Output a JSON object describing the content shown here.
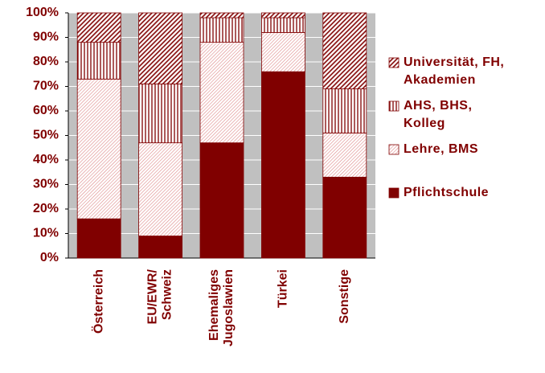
{
  "chart_data": {
    "type": "stacked-bar",
    "categories": [
      "Österreich",
      "EU/EWR/ Schweiz",
      "Ehemaliges Jugoslawien",
      "Türkei",
      "Sonstige"
    ],
    "series": [
      {
        "name": "Pflichtschule",
        "color": "#800000",
        "pattern": "solid",
        "values": [
          16,
          9,
          47,
          76,
          33
        ]
      },
      {
        "name": "Lehre, BMS",
        "color": "#800000",
        "pattern": "diagonal-fine",
        "values": [
          57,
          38,
          41,
          16,
          18
        ]
      },
      {
        "name": "AHS, BHS, Kolleg",
        "color": "#800000",
        "pattern": "vertical",
        "values": [
          15,
          24,
          10,
          6,
          18
        ]
      },
      {
        "name": "Universität, FH, Akademien",
        "color": "#800000",
        "pattern": "diagonal",
        "values": [
          12,
          29,
          2,
          2,
          31
        ]
      }
    ],
    "ylim": [
      0,
      100
    ],
    "yticks": [
      {
        "value": 0,
        "label": "0%"
      },
      {
        "value": 10,
        "label": "10%"
      },
      {
        "value": 20,
        "label": "20%"
      },
      {
        "value": 30,
        "label": "30%"
      },
      {
        "value": 40,
        "label": "40%"
      },
      {
        "value": 50,
        "label": "50%"
      },
      {
        "value": 60,
        "label": "60%"
      },
      {
        "value": 70,
        "label": "70%"
      },
      {
        "value": 80,
        "label": "80%"
      },
      {
        "value": 90,
        "label": "90%"
      },
      {
        "value": 100,
        "label": "100%"
      }
    ],
    "grid": true,
    "legend": "right"
  }
}
